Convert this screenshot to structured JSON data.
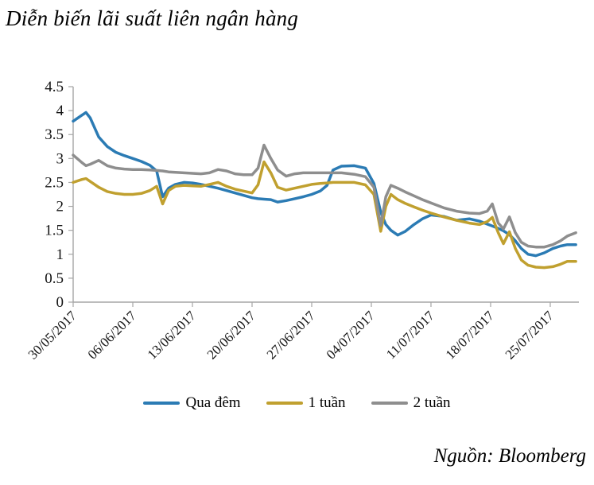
{
  "title": "Diễn biến lãi suất liên ngân hàng",
  "source": "Nguồn: Bloomberg",
  "colors": {
    "overnight": "#2b7bb4",
    "one_week": "#c0a02f",
    "two_week": "#8e8e8e",
    "axis": "#a6a6a6",
    "text": "#141414"
  },
  "chart_data": {
    "type": "line",
    "title": "Diễn biến lãi suất liên ngân hàng",
    "xlabel": "",
    "ylabel": "",
    "x_unit": "days since 30/05/2017",
    "xlim": [
      0,
      59
    ],
    "ylim": [
      0,
      4.5
    ],
    "grid": false,
    "legend_position": "bottom",
    "y_ticks": [
      0,
      0.5,
      1,
      1.5,
      2,
      2.5,
      3,
      3.5,
      4,
      4.5
    ],
    "x_tick_days": [
      0,
      7,
      14,
      21,
      28,
      35,
      42,
      49,
      56
    ],
    "x_tick_labels": [
      "30/05/2017",
      "06/06/2017",
      "13/06/2017",
      "20/06/2017",
      "27/06/2017",
      "04/07/2017",
      "11/07/2017",
      "18/07/2017",
      "25/07/2017"
    ],
    "x": [
      0,
      1,
      1.5,
      2,
      3,
      4,
      5,
      6,
      7,
      8,
      9,
      9.8,
      10.5,
      11.2,
      12,
      13,
      14,
      15,
      16,
      17,
      18,
      19,
      20,
      21,
      21.7,
      22.4,
      23.2,
      24,
      25,
      26,
      27,
      28,
      29,
      29.8,
      30.5,
      31.5,
      33,
      34.3,
      35.3,
      36.1,
      36.7,
      37.3,
      38.1,
      39,
      40,
      41,
      42,
      43.5,
      45,
      46.5,
      47.7,
      48.6,
      49.2,
      49.9,
      50.5,
      51.2,
      51.9,
      52.6,
      53.4,
      54.3,
      55.3,
      56.3,
      57.2,
      58,
      59
    ],
    "series": [
      {
        "name": "Qua đêm",
        "key": "overnight",
        "color_key": "overnight",
        "values": [
          3.78,
          3.9,
          3.96,
          3.85,
          3.45,
          3.25,
          3.13,
          3.06,
          3.0,
          2.94,
          2.86,
          2.74,
          2.2,
          2.38,
          2.46,
          2.5,
          2.49,
          2.46,
          2.42,
          2.38,
          2.33,
          2.28,
          2.23,
          2.18,
          2.16,
          2.15,
          2.14,
          2.09,
          2.12,
          2.16,
          2.2,
          2.25,
          2.32,
          2.44,
          2.76,
          2.84,
          2.85,
          2.8,
          2.48,
          1.88,
          1.62,
          1.5,
          1.4,
          1.48,
          1.62,
          1.74,
          1.82,
          1.79,
          1.71,
          1.74,
          1.69,
          1.63,
          1.59,
          1.54,
          1.49,
          1.41,
          1.28,
          1.12,
          1.0,
          0.97,
          1.03,
          1.12,
          1.17,
          1.2,
          1.2
        ]
      },
      {
        "name": "1 tuần",
        "key": "one-week",
        "color_key": "one_week",
        "values": [
          2.5,
          2.56,
          2.58,
          2.52,
          2.4,
          2.31,
          2.27,
          2.25,
          2.25,
          2.27,
          2.33,
          2.42,
          2.05,
          2.33,
          2.42,
          2.44,
          2.43,
          2.42,
          2.46,
          2.5,
          2.42,
          2.36,
          2.32,
          2.28,
          2.45,
          2.93,
          2.7,
          2.4,
          2.34,
          2.38,
          2.42,
          2.46,
          2.48,
          2.49,
          2.5,
          2.5,
          2.5,
          2.45,
          2.25,
          1.48,
          2.0,
          2.25,
          2.14,
          2.06,
          1.99,
          1.92,
          1.86,
          1.78,
          1.71,
          1.65,
          1.62,
          1.68,
          1.77,
          1.45,
          1.22,
          1.47,
          1.12,
          0.88,
          0.77,
          0.73,
          0.72,
          0.74,
          0.79,
          0.85,
          0.85
        ]
      },
      {
        "name": "2 tuần",
        "key": "two-week",
        "color_key": "two_week",
        "values": [
          3.07,
          2.92,
          2.85,
          2.88,
          2.96,
          2.85,
          2.8,
          2.78,
          2.77,
          2.77,
          2.76,
          2.75,
          2.74,
          2.72,
          2.71,
          2.7,
          2.69,
          2.68,
          2.7,
          2.77,
          2.74,
          2.68,
          2.66,
          2.66,
          2.8,
          3.28,
          3.0,
          2.76,
          2.63,
          2.68,
          2.7,
          2.7,
          2.7,
          2.7,
          2.7,
          2.7,
          2.67,
          2.62,
          2.4,
          1.6,
          2.2,
          2.44,
          2.38,
          2.3,
          2.22,
          2.14,
          2.07,
          1.97,
          1.9,
          1.86,
          1.85,
          1.9,
          2.05,
          1.65,
          1.53,
          1.78,
          1.45,
          1.25,
          1.17,
          1.15,
          1.15,
          1.2,
          1.28,
          1.38,
          1.45
        ]
      }
    ]
  },
  "legend": {
    "items": [
      {
        "label": "Qua đêm"
      },
      {
        "label": "1 tuần"
      },
      {
        "label": "2 tuần"
      }
    ]
  }
}
